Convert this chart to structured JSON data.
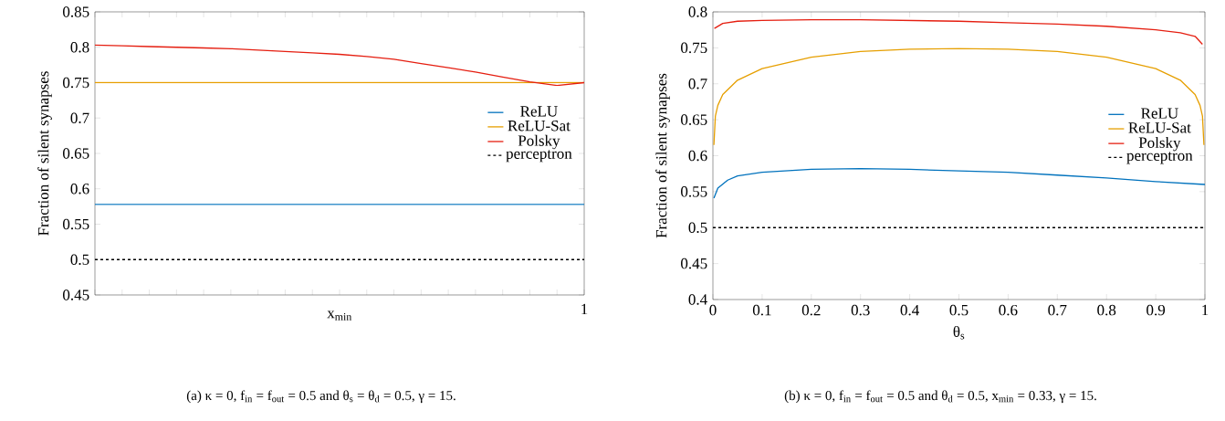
{
  "chart_data": [
    {
      "type": "line",
      "xlabel": "x$_{min}$",
      "ylabel": "Fraction of silent synapses",
      "ylim": [
        0.45,
        0.85
      ],
      "categories": [
        null,
        null,
        null,
        null,
        null,
        null,
        null,
        null,
        null,
        null,
        null,
        null,
        null,
        null,
        null,
        null,
        null,
        null,
        null
      ],
      "yticks": [
        0.45,
        0.5,
        0.55,
        0.6,
        0.65,
        0.7,
        0.75,
        0.8,
        0.85
      ],
      "legend": "right",
      "marker": "none",
      "series": [
        {
          "name": "ReLU",
          "color": "#0072bd",
          "values": [
            0.578,
            0.578,
            0.578,
            0.578,
            0.578,
            0.578,
            0.578,
            0.578,
            0.578,
            0.578,
            0.578,
            0.578,
            0.578,
            0.578,
            0.578,
            0.578,
            0.578,
            0.578,
            0.578
          ]
        },
        {
          "name": "ReLU-Sat",
          "color": "#e69f00",
          "values": [
            0.75,
            0.75,
            0.75,
            0.75,
            0.75,
            0.75,
            0.75,
            0.75,
            0.75,
            0.75,
            0.75,
            0.75,
            0.75,
            0.75,
            0.75,
            0.75,
            0.75,
            0.75,
            0.75
          ]
        },
        {
          "name": "Polsky",
          "color": "#e51e10",
          "values": [
            0.803,
            0.802,
            0.801,
            0.8,
            0.799,
            0.798,
            0.796,
            0.794,
            0.792,
            0.79,
            0.787,
            0.783,
            0.777,
            0.771,
            0.765,
            0.758,
            0.751,
            0.746,
            0.75
          ]
        },
        {
          "name": "perceptron",
          "color": "#000000",
          "line_style": "dashed",
          "values": [
            0.5,
            0.5,
            0.5,
            0.5,
            0.5,
            0.5,
            0.5,
            0.5,
            0.5,
            0.5,
            0.5,
            0.5,
            0.5,
            0.5,
            0.5,
            0.5,
            0.5,
            0.5,
            0.5
          ]
        }
      ],
      "annotations": [
        "1",
        "(a)  κ = 0, f$_{in}$ = f$_{out}$ = 0.5 and θ$_{s}$ = θ$_{d}$ = 0.5, γ = 15."
      ]
    },
    {
      "type": "line",
      "xlabel": "θ$_{s}$",
      "ylabel": "Fraction of silent synapses",
      "xlim": [
        0,
        1
      ],
      "ylim": [
        0.4,
        0.8
      ],
      "xticks": [
        0,
        0.1,
        0.2,
        0.3,
        0.4,
        0.5,
        0.6,
        0.7,
        0.8,
        0.9,
        1
      ],
      "yticks": [
        0.4,
        0.45,
        0.5,
        0.55,
        0.6,
        0.65,
        0.7,
        0.75,
        0.8
      ],
      "legend": "right",
      "marker": "none",
      "series": [
        {
          "name": "ReLU",
          "color": "#0072bd",
          "x": [
            0.002,
            0.01,
            0.03,
            0.05,
            0.1,
            0.2,
            0.3,
            0.4,
            0.5,
            0.6,
            0.7,
            0.8,
            0.9,
            1.0
          ],
          "values": [
            0.541,
            0.555,
            0.566,
            0.572,
            0.577,
            0.581,
            0.582,
            0.581,
            0.579,
            0.577,
            0.573,
            0.569,
            0.564,
            0.56
          ]
        },
        {
          "name": "ReLU-Sat",
          "color": "#e69f00",
          "x": [
            0.002,
            0.005,
            0.01,
            0.02,
            0.05,
            0.1,
            0.2,
            0.3,
            0.4,
            0.5,
            0.6,
            0.7,
            0.8,
            0.9,
            0.95,
            0.98,
            0.99,
            0.995,
            0.998
          ],
          "values": [
            0.615,
            0.655,
            0.67,
            0.685,
            0.705,
            0.721,
            0.737,
            0.745,
            0.748,
            0.749,
            0.748,
            0.745,
            0.737,
            0.721,
            0.705,
            0.685,
            0.67,
            0.655,
            0.615
          ]
        },
        {
          "name": "Polsky",
          "color": "#e51e10",
          "x": [
            0.003,
            0.02,
            0.05,
            0.1,
            0.2,
            0.3,
            0.4,
            0.5,
            0.6,
            0.7,
            0.8,
            0.9,
            0.95,
            0.98,
            0.995
          ],
          "values": [
            0.777,
            0.784,
            0.787,
            0.788,
            0.789,
            0.789,
            0.788,
            0.787,
            0.785,
            0.783,
            0.78,
            0.775,
            0.771,
            0.766,
            0.755
          ]
        },
        {
          "name": "perceptron",
          "color": "#000000",
          "line_style": "dashed",
          "x": [
            0,
            1
          ],
          "values": [
            0.5,
            0.5
          ]
        }
      ],
      "annotations": [
        "(b) κ = 0, f$_{in}$ = f$_{out}$ = 0.5 and θ$_{d}$ = 0.5, x$_{min}$ = 0.33, γ = 15."
      ]
    }
  ]
}
